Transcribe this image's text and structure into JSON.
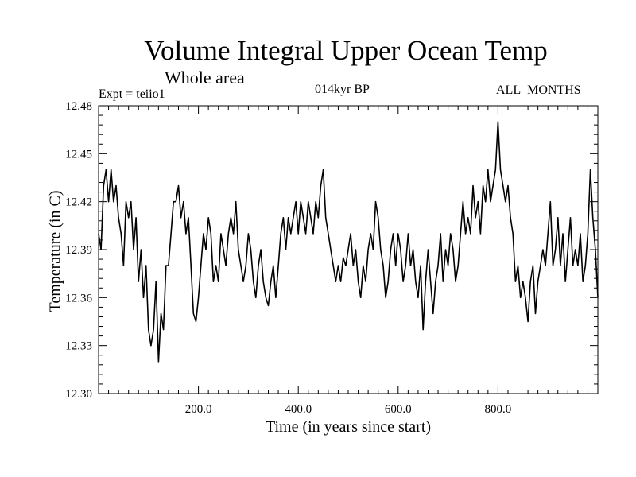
{
  "chart_data": {
    "type": "line",
    "title": "Volume Integral Upper Ocean Temp",
    "subtitle": "Whole area",
    "annotations": {
      "experiment": "Expt = teiio1",
      "period": "014kyr BP",
      "months": "ALL_MONTHS"
    },
    "xlabel": "Time (in years since start)",
    "ylabel": "Temperature (in C)",
    "xlim": [
      0,
      1000
    ],
    "ylim": [
      12.3,
      12.48
    ],
    "x_ticks": [
      200,
      400,
      600,
      800
    ],
    "x_tick_labels": [
      "200.0",
      "400.0",
      "600.0",
      "800.0"
    ],
    "y_ticks": [
      12.3,
      12.33,
      12.36,
      12.39,
      12.42,
      12.45,
      12.48
    ],
    "y_tick_labels": [
      "12.30",
      "12.33",
      "12.36",
      "12.39",
      "12.42",
      "12.45",
      "12.48"
    ],
    "grid": false,
    "series": [
      {
        "color": "#000000",
        "points": [
          [
            0,
            12.4
          ],
          [
            5,
            12.39
          ],
          [
            10,
            12.43
          ],
          [
            15,
            12.44
          ],
          [
            20,
            12.42
          ],
          [
            25,
            12.44
          ],
          [
            30,
            12.42
          ],
          [
            35,
            12.43
          ],
          [
            40,
            12.41
          ],
          [
            45,
            12.4
          ],
          [
            50,
            12.38
          ],
          [
            55,
            12.42
          ],
          [
            60,
            12.41
          ],
          [
            65,
            12.42
          ],
          [
            70,
            12.39
          ],
          [
            75,
            12.41
          ],
          [
            80,
            12.37
          ],
          [
            85,
            12.39
          ],
          [
            90,
            12.36
          ],
          [
            95,
            12.38
          ],
          [
            100,
            12.34
          ],
          [
            105,
            12.33
          ],
          [
            110,
            12.34
          ],
          [
            115,
            12.37
          ],
          [
            120,
            12.32
          ],
          [
            125,
            12.35
          ],
          [
            130,
            12.34
          ],
          [
            135,
            12.38
          ],
          [
            140,
            12.38
          ],
          [
            145,
            12.4
          ],
          [
            150,
            12.42
          ],
          [
            155,
            12.42
          ],
          [
            160,
            12.43
          ],
          [
            165,
            12.41
          ],
          [
            170,
            12.42
          ],
          [
            175,
            12.4
          ],
          [
            180,
            12.41
          ],
          [
            185,
            12.38
          ],
          [
            190,
            12.35
          ],
          [
            195,
            12.345
          ],
          [
            200,
            12.36
          ],
          [
            205,
            12.38
          ],
          [
            210,
            12.4
          ],
          [
            215,
            12.39
          ],
          [
            220,
            12.41
          ],
          [
            225,
            12.4
          ],
          [
            230,
            12.37
          ],
          [
            235,
            12.38
          ],
          [
            240,
            12.37
          ],
          [
            245,
            12.4
          ],
          [
            250,
            12.39
          ],
          [
            255,
            12.38
          ],
          [
            260,
            12.4
          ],
          [
            265,
            12.41
          ],
          [
            270,
            12.4
          ],
          [
            275,
            12.42
          ],
          [
            280,
            12.39
          ],
          [
            285,
            12.38
          ],
          [
            290,
            12.37
          ],
          [
            295,
            12.38
          ],
          [
            300,
            12.4
          ],
          [
            305,
            12.39
          ],
          [
            310,
            12.37
          ],
          [
            315,
            12.36
          ],
          [
            320,
            12.38
          ],
          [
            325,
            12.39
          ],
          [
            330,
            12.37
          ],
          [
            335,
            12.36
          ],
          [
            340,
            12.355
          ],
          [
            345,
            12.37
          ],
          [
            350,
            12.38
          ],
          [
            355,
            12.36
          ],
          [
            360,
            12.38
          ],
          [
            365,
            12.4
          ],
          [
            370,
            12.41
          ],
          [
            375,
            12.39
          ],
          [
            380,
            12.41
          ],
          [
            385,
            12.4
          ],
          [
            390,
            12.41
          ],
          [
            395,
            12.42
          ],
          [
            400,
            12.4
          ],
          [
            405,
            12.42
          ],
          [
            410,
            12.41
          ],
          [
            415,
            12.4
          ],
          [
            420,
            12.42
          ],
          [
            425,
            12.41
          ],
          [
            430,
            12.4
          ],
          [
            435,
            12.42
          ],
          [
            440,
            12.41
          ],
          [
            445,
            12.43
          ],
          [
            450,
            12.44
          ],
          [
            455,
            12.41
          ],
          [
            460,
            12.4
          ],
          [
            465,
            12.39
          ],
          [
            470,
            12.38
          ],
          [
            475,
            12.37
          ],
          [
            480,
            12.38
          ],
          [
            485,
            12.37
          ],
          [
            490,
            12.385
          ],
          [
            495,
            12.38
          ],
          [
            500,
            12.39
          ],
          [
            505,
            12.4
          ],
          [
            510,
            12.38
          ],
          [
            515,
            12.39
          ],
          [
            520,
            12.37
          ],
          [
            525,
            12.36
          ],
          [
            530,
            12.38
          ],
          [
            535,
            12.37
          ],
          [
            540,
            12.39
          ],
          [
            545,
            12.4
          ],
          [
            550,
            12.39
          ],
          [
            555,
            12.42
          ],
          [
            560,
            12.41
          ],
          [
            565,
            12.39
          ],
          [
            570,
            12.38
          ],
          [
            575,
            12.36
          ],
          [
            580,
            12.37
          ],
          [
            585,
            12.39
          ],
          [
            590,
            12.4
          ],
          [
            595,
            12.38
          ],
          [
            600,
            12.4
          ],
          [
            605,
            12.39
          ],
          [
            610,
            12.37
          ],
          [
            615,
            12.38
          ],
          [
            620,
            12.4
          ],
          [
            625,
            12.38
          ],
          [
            630,
            12.39
          ],
          [
            635,
            12.37
          ],
          [
            640,
            12.36
          ],
          [
            645,
            12.38
          ],
          [
            650,
            12.34
          ],
          [
            655,
            12.37
          ],
          [
            660,
            12.39
          ],
          [
            665,
            12.37
          ],
          [
            670,
            12.35
          ],
          [
            675,
            12.37
          ],
          [
            680,
            12.38
          ],
          [
            685,
            12.4
          ],
          [
            690,
            12.37
          ],
          [
            695,
            12.39
          ],
          [
            700,
            12.38
          ],
          [
            705,
            12.4
          ],
          [
            710,
            12.39
          ],
          [
            715,
            12.37
          ],
          [
            720,
            12.38
          ],
          [
            725,
            12.4
          ],
          [
            730,
            12.42
          ],
          [
            735,
            12.4
          ],
          [
            740,
            12.41
          ],
          [
            745,
            12.4
          ],
          [
            750,
            12.43
          ],
          [
            755,
            12.41
          ],
          [
            760,
            12.42
          ],
          [
            765,
            12.4
          ],
          [
            770,
            12.43
          ],
          [
            775,
            12.42
          ],
          [
            780,
            12.44
          ],
          [
            785,
            12.42
          ],
          [
            790,
            12.43
          ],
          [
            795,
            12.44
          ],
          [
            800,
            12.47
          ],
          [
            805,
            12.44
          ],
          [
            810,
            12.43
          ],
          [
            815,
            12.42
          ],
          [
            820,
            12.43
          ],
          [
            825,
            12.41
          ],
          [
            830,
            12.4
          ],
          [
            835,
            12.37
          ],
          [
            840,
            12.38
          ],
          [
            845,
            12.36
          ],
          [
            850,
            12.37
          ],
          [
            855,
            12.36
          ],
          [
            860,
            12.345
          ],
          [
            865,
            12.37
          ],
          [
            870,
            12.38
          ],
          [
            875,
            12.35
          ],
          [
            880,
            12.37
          ],
          [
            885,
            12.38
          ],
          [
            890,
            12.39
          ],
          [
            895,
            12.38
          ],
          [
            900,
            12.4
          ],
          [
            905,
            12.42
          ],
          [
            910,
            12.38
          ],
          [
            915,
            12.39
          ],
          [
            920,
            12.41
          ],
          [
            925,
            12.38
          ],
          [
            930,
            12.4
          ],
          [
            935,
            12.37
          ],
          [
            940,
            12.39
          ],
          [
            945,
            12.41
          ],
          [
            950,
            12.38
          ],
          [
            955,
            12.39
          ],
          [
            960,
            12.38
          ],
          [
            965,
            12.4
          ],
          [
            970,
            12.37
          ],
          [
            975,
            12.38
          ],
          [
            980,
            12.4
          ],
          [
            985,
            12.44
          ],
          [
            990,
            12.41
          ],
          [
            995,
            12.39
          ],
          [
            1000,
            12.36
          ]
        ]
      }
    ]
  }
}
